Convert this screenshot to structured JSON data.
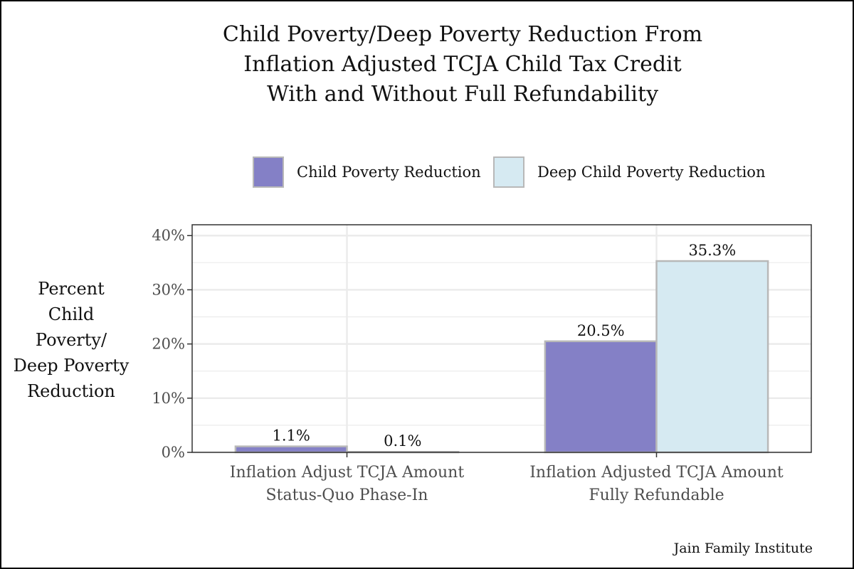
{
  "chart_data": {
    "type": "bar",
    "title_lines": [
      "Child Poverty/Deep Poverty Reduction From",
      "Inflation Adjusted TCJA Child Tax Credit",
      "With and Without Full Refundability"
    ],
    "ylabel_lines": [
      "Percent",
      "Child",
      "Poverty/",
      "Deep Poverty",
      "Reduction"
    ],
    "xlabel": "",
    "categories": [
      [
        "Inflation Adjust TCJA Amount",
        "Status-Quo Phase-In"
      ],
      [
        "Inflation Adjusted TCJA Amount",
        "Fully Refundable"
      ]
    ],
    "series": [
      {
        "name": "Child Poverty Reduction",
        "values": [
          1.1,
          20.5
        ],
        "labels": [
          "1.1%",
          "20.5%"
        ],
        "color": "#8480c6"
      },
      {
        "name": "Deep Child Poverty Reduction",
        "values": [
          0.1,
          35.3
        ],
        "labels": [
          "0.1%",
          "35.3%"
        ],
        "color": "#d6eaf2"
      }
    ],
    "ylim": [
      0,
      42
    ],
    "yticks": [
      0,
      10,
      20,
      30,
      40
    ],
    "ytick_labels": [
      "0%",
      "10%",
      "20%",
      "30%",
      "40%"
    ],
    "grid": true,
    "legend_position": "top",
    "bar_border_color": "#b8b8b8",
    "grid_color": "#ebebeb"
  },
  "source": "Jain Family Institute"
}
